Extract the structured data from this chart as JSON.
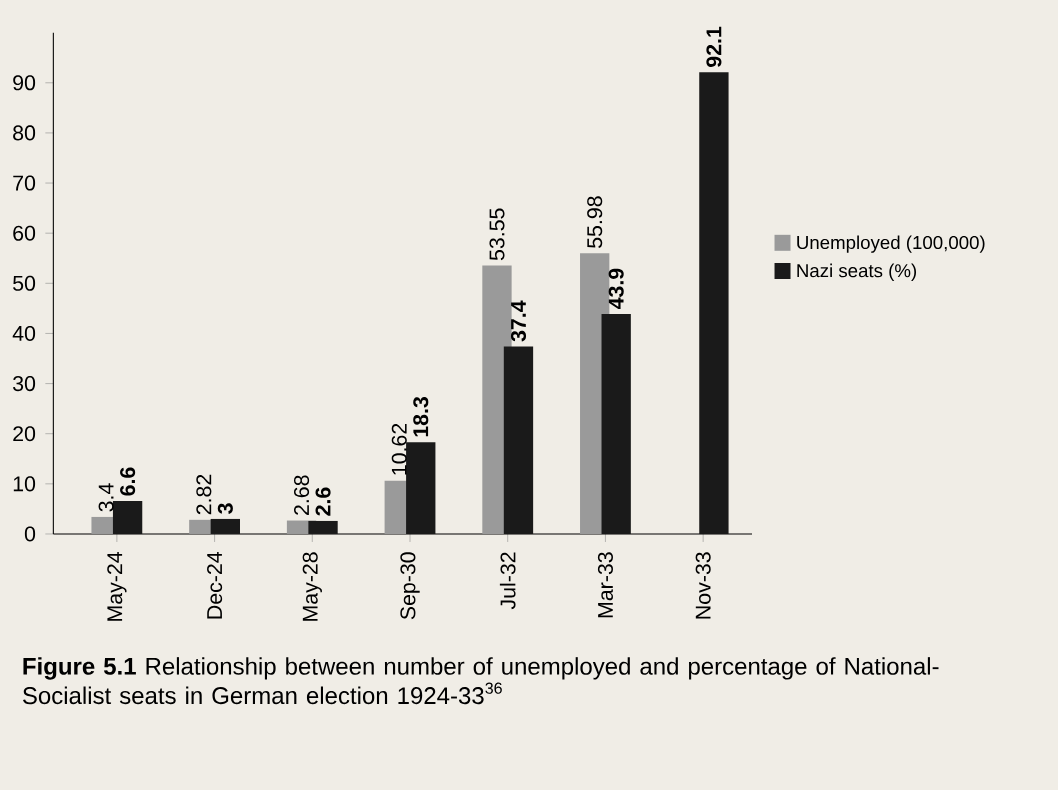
{
  "chart_data": {
    "type": "bar",
    "categories": [
      "May-24",
      "Dec-24",
      "May-28",
      "Sep-30",
      "Jul-32",
      "Mar-33",
      "Nov-33"
    ],
    "series": [
      {
        "name": "Unemployed (100,000)",
        "color": "#9a9a9a",
        "values": [
          3.4,
          2.82,
          2.68,
          10.62,
          53.55,
          55.98,
          null
        ],
        "value_labels": [
          "3.4",
          "2.82",
          "2.68",
          "10.62",
          "53.55",
          "55.98",
          null
        ]
      },
      {
        "name": "Nazi seats (%)",
        "color": "#1a1a1a",
        "values": [
          6.6,
          3,
          2.6,
          18.3,
          37.4,
          43.9,
          92.1
        ],
        "value_labels": [
          "6.6",
          "3",
          "2.6",
          "18.3",
          "37.4",
          "43.9",
          "92.1"
        ]
      }
    ],
    "ylim": [
      0,
      100
    ],
    "yticks": [
      0,
      10,
      20,
      30,
      40,
      50,
      60,
      70,
      80,
      90
    ],
    "legend": "right",
    "grid": false,
    "annotations": [
      "**Figure 5.1** Relationship between number of unemployed and percentage of National-Socialist seats in German election 1924-33$^{36}$"
    ]
  }
}
